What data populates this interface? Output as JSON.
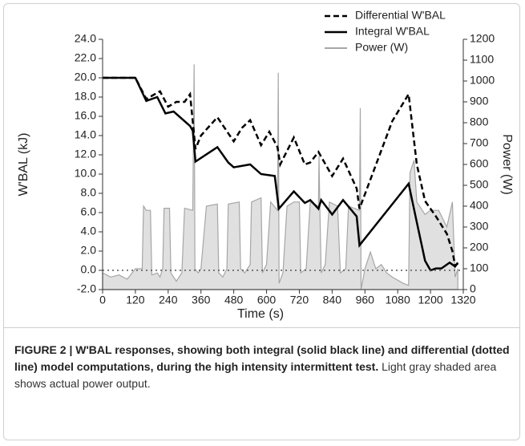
{
  "chart_data": {
    "type": "line",
    "xlabel": "Time (s)",
    "ylabel": "W'BAL (kJ)",
    "y2label": "Power (W)",
    "xlim": [
      0,
      1320
    ],
    "xticks": [
      0,
      120,
      240,
      360,
      480,
      600,
      720,
      840,
      960,
      1080,
      1200,
      1320
    ],
    "ylim": [
      -2,
      24
    ],
    "yticks": [
      {
        "value": -2,
        "label": "-2.0"
      },
      {
        "value": 0,
        "label": "0.0"
      },
      {
        "value": 2,
        "label": "2.0"
      },
      {
        "value": 4,
        "label": "4.0"
      },
      {
        "value": 6,
        "label": "6.0"
      },
      {
        "value": 8,
        "label": "8.0"
      },
      {
        "value": 10,
        "label": "10.0"
      },
      {
        "value": 12,
        "label": "12.0"
      },
      {
        "value": 14,
        "label": "14.0"
      },
      {
        "value": 16,
        "label": "16.0"
      },
      {
        "value": 18,
        "label": "18.0"
      },
      {
        "value": 20,
        "label": "20.0"
      },
      {
        "value": 22,
        "label": "22.0"
      },
      {
        "value": 24,
        "label": "24.0"
      }
    ],
    "y2lim": [
      0,
      1200
    ],
    "y2ticks": [
      0,
      100,
      200,
      300,
      400,
      500,
      600,
      700,
      800,
      900,
      1000,
      1100,
      1200
    ],
    "zero_line": true,
    "legend": "top-right",
    "series": [
      {
        "name": "Differential W'BAL",
        "color": "#000000",
        "style": "dashed",
        "x": [
          0,
          120,
          160,
          210,
          240,
          270,
          300,
          320,
          340,
          360,
          420,
          480,
          510,
          540,
          580,
          610,
          640,
          650,
          700,
          740,
          760,
          790,
          840,
          880,
          930,
          940,
          1060,
          1120,
          1150,
          1180,
          1220,
          1260,
          1280,
          1290,
          1300
        ],
        "values": [
          20,
          20,
          17.8,
          18.6,
          17,
          17.5,
          17.5,
          18.3,
          12.6,
          14,
          15.9,
          13.4,
          14.8,
          15.6,
          13,
          14.4,
          12.8,
          11,
          13.8,
          11,
          11.2,
          12.3,
          9.8,
          11.6,
          8.5,
          6.4,
          15.5,
          18.3,
          11,
          7.2,
          5.6,
          3.8,
          2,
          0.5,
          0.7
        ]
      },
      {
        "name": "Integral W'BAL",
        "color": "#000000",
        "style": "solid",
        "x": [
          0,
          120,
          160,
          200,
          230,
          260,
          320,
          330,
          340,
          420,
          460,
          480,
          540,
          580,
          630,
          645,
          700,
          740,
          760,
          790,
          800,
          840,
          880,
          930,
          940,
          1120,
          1150,
          1180,
          1200,
          1220,
          1240,
          1270,
          1290,
          1300
        ],
        "values": [
          20,
          20,
          17.6,
          18,
          16.3,
          16.5,
          15,
          14.5,
          11.3,
          12.8,
          11.2,
          10.7,
          11,
          10,
          9.8,
          6.4,
          8.2,
          7,
          7.3,
          6.4,
          7.3,
          5.8,
          7.3,
          5.6,
          2.6,
          9,
          5,
          1,
          0,
          0.2,
          0.2,
          0.8,
          0.4,
          0.8
        ]
      },
      {
        "name": "Power (W)",
        "color": "#a6a6a6",
        "fill": "#e0e0e0",
        "style": "area",
        "axis": "y2",
        "x": [
          0,
          30,
          60,
          90,
          120,
          145,
          150,
          160,
          175,
          180,
          200,
          210,
          220,
          225,
          245,
          250,
          270,
          290,
          300,
          330,
          335,
          338,
          350,
          360,
          380,
          420,
          425,
          440,
          455,
          460,
          500,
          505,
          520,
          540,
          545,
          580,
          585,
          600,
          615,
          640,
          643,
          646,
          660,
          675,
          700,
          720,
          725,
          745,
          760,
          790,
          792,
          795,
          800,
          815,
          830,
          860,
          870,
          890,
          900,
          940,
          943,
          946,
          960,
          980,
          1000,
          1020,
          1040,
          1060,
          1100,
          1120,
          1125,
          1140,
          1150,
          1180,
          1200,
          1230,
          1260,
          1280,
          1290,
          1300
        ],
        "values": [
          80,
          60,
          70,
          50,
          100,
          100,
          400,
          380,
          380,
          70,
          80,
          60,
          100,
          390,
          390,
          80,
          40,
          80,
          390,
          380,
          1080,
          100,
          80,
          100,
          400,
          410,
          80,
          60,
          100,
          410,
          420,
          100,
          80,
          120,
          420,
          440,
          80,
          120,
          420,
          380,
          1040,
          30,
          80,
          400,
          420,
          420,
          80,
          100,
          420,
          400,
          640,
          400,
          80,
          120,
          420,
          400,
          80,
          100,
          400,
          380,
          870,
          0,
          100,
          180,
          100,
          120,
          80,
          60,
          30,
          20,
          560,
          620,
          420,
          360,
          380,
          380,
          300,
          420,
          60,
          100
        ]
      }
    ]
  },
  "caption": {
    "bold": "FIGURE 2 | W'BAL responses, showing both integral (solid black line) and differential (dotted line) model computations, during the high intensity intermittent test.",
    "text": "Light gray shaded area shows actual power output."
  }
}
